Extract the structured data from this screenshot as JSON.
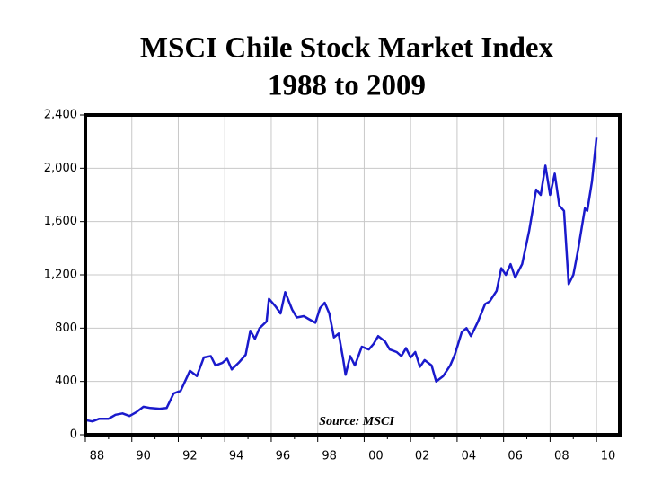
{
  "chart_data": {
    "type": "line",
    "title": "MSCI Chile Stock Market Index",
    "subtitle": "1988 to 2009",
    "annotation": "Source: MSCI",
    "xlim": [
      1988,
      2011
    ],
    "xticks": [
      {
        "value": 1988,
        "label": "88"
      },
      {
        "value": 1990,
        "label": "90"
      },
      {
        "value": 1992,
        "label": "92"
      },
      {
        "value": 1994,
        "label": "94"
      },
      {
        "value": 1996,
        "label": "96"
      },
      {
        "value": 1998,
        "label": "98"
      },
      {
        "value": 2000,
        "label": "00"
      },
      {
        "value": 2002,
        "label": "02"
      },
      {
        "value": 2004,
        "label": "04"
      },
      {
        "value": 2006,
        "label": "06"
      },
      {
        "value": 2008,
        "label": "08"
      },
      {
        "value": 2010,
        "label": "10"
      }
    ],
    "ylim": [
      0,
      2400
    ],
    "yticks": [
      0,
      {
        "value": 400,
        "label": "400"
      },
      {
        "value": 800,
        "label": "800"
      },
      {
        "value": 1200,
        "label": "1,200"
      },
      {
        "value": 1600,
        "label": "1,600"
      },
      {
        "value": 2000,
        "label": "2,000"
      },
      {
        "value": 2400,
        "label": "2,400"
      }
    ],
    "grid": true,
    "series": [
      {
        "name": "MSCI Chile",
        "color": "#1a1acc",
        "x": [
          1988.0,
          1988.3,
          1988.6,
          1989.0,
          1989.3,
          1989.6,
          1989.9,
          1990.2,
          1990.5,
          1990.8,
          1991.2,
          1991.5,
          1991.8,
          1992.1,
          1992.5,
          1992.8,
          1993.1,
          1993.4,
          1993.6,
          1993.9,
          1994.1,
          1994.3,
          1994.6,
          1994.9,
          1995.1,
          1995.3,
          1995.5,
          1995.8,
          1995.9,
          1996.2,
          1996.4,
          1996.6,
          1996.9,
          1997.1,
          1997.4,
          1997.6,
          1997.9,
          1998.1,
          1998.3,
          1998.5,
          1998.7,
          1998.9,
          1999.1,
          1999.2,
          1999.4,
          1999.6,
          1999.9,
          2000.2,
          2000.4,
          2000.6,
          2000.9,
          2001.1,
          2001.4,
          2001.6,
          2001.8,
          2002.0,
          2002.2,
          2002.4,
          2002.6,
          2002.9,
          2003.1,
          2003.4,
          2003.7,
          2003.9,
          2004.2,
          2004.4,
          2004.6,
          2004.9,
          2005.2,
          2005.4,
          2005.7,
          2005.9,
          2006.1,
          2006.3,
          2006.5,
          2006.8,
          2007.1,
          2007.4,
          2007.6,
          2007.8,
          2008.0,
          2008.2,
          2008.4,
          2008.6,
          2008.8,
          2009.0,
          2009.2,
          2009.5,
          2009.6,
          2009.8,
          2010.0
        ],
        "values": [
          110,
          100,
          120,
          120,
          150,
          160,
          140,
          170,
          210,
          200,
          195,
          200,
          310,
          330,
          480,
          440,
          580,
          590,
          520,
          540,
          570,
          490,
          540,
          600,
          780,
          720,
          800,
          850,
          1020,
          960,
          910,
          1070,
          940,
          880,
          890,
          870,
          840,
          950,
          990,
          910,
          730,
          760,
          560,
          450,
          590,
          520,
          660,
          640,
          680,
          740,
          700,
          640,
          620,
          590,
          650,
          580,
          620,
          510,
          560,
          520,
          400,
          440,
          520,
          600,
          770,
          800,
          740,
          850,
          980,
          1000,
          1080,
          1250,
          1200,
          1280,
          1180,
          1280,
          1530,
          1840,
          1800,
          2020,
          1800,
          1960,
          1720,
          1680,
          1130,
          1200,
          1380,
          1700,
          1680,
          1900,
          2230
        ]
      }
    ]
  }
}
